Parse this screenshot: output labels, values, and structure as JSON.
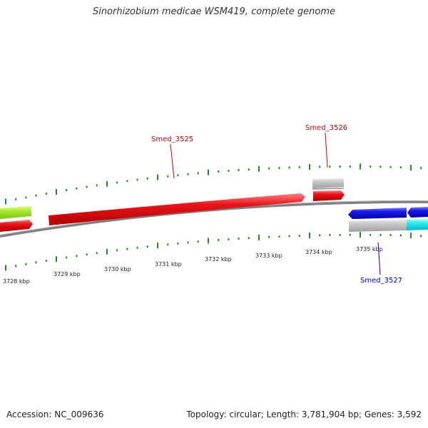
{
  "title": "Sinorhizobium medicae WSM419, complete genome",
  "footer": {
    "accession": "Accession: NC_009636",
    "summary": "Topology: circular; Length: 3,781,904 bp; Genes: 3,592"
  },
  "scale_labels": [
    "3728 kbp",
    "3729 kbp",
    "3730 kbp",
    "3731 kbp",
    "3732 kbp",
    "3733 kbp",
    "3734 kbp",
    "3735 kbp"
  ],
  "gene_labels": [
    {
      "id": "Smed_3525",
      "color": "#cc0000"
    },
    {
      "id": "Smed_3526",
      "color": "#cc0000"
    },
    {
      "id": "Smed_3527",
      "color": "#0000cc"
    }
  ],
  "colors": {
    "tick": "#228b22",
    "backbone": "#808080",
    "red_gene": "#e8151a",
    "blue_gene": "#1a1aee",
    "gray_gene": "#c0c0c0",
    "green_gene": "#a8e830",
    "cyan_gene": "#22e8ee"
  }
}
